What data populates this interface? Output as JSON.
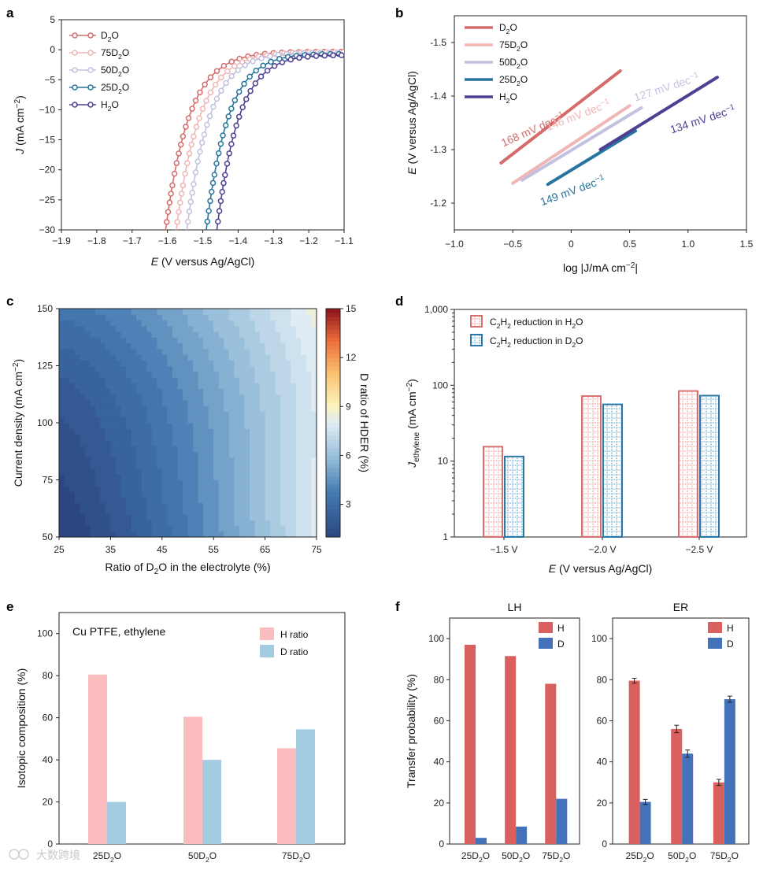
{
  "panels": {
    "a": "a",
    "b": "b",
    "c": "c",
    "d": "d",
    "e": "e",
    "f": "f"
  },
  "watermark": "大数跨境",
  "colors": {
    "D2O": "#d56c6c",
    "75D2O": "#f0b6b6",
    "50D2O": "#c2c2e0",
    "25D2O": "#26759e",
    "H2O": "#503f93",
    "H_bar": "#d9605e",
    "D_bar": "#4472b8",
    "e_H": "#fbbcc0",
    "e_D": "#a3cce0",
    "d_H2O": "#d97070",
    "d_D2O": "#2a78a6"
  },
  "chart_data": [
    {
      "panel": "a",
      "type": "line",
      "xlabel_var": "E",
      "xlabel_rest": "(V versus Ag/AgCl)",
      "ylabel_var": "J",
      "ylabel_rest": "(mA cm",
      "xlim": [
        -1.9,
        -1.1
      ],
      "ylim": [
        -30,
        5
      ],
      "xticks": [
        "−1.9",
        "−1.8",
        "−1.7",
        "−1.6",
        "−1.5",
        "−1.4",
        "−1.3",
        "−1.2",
        "−1.1"
      ],
      "xtick_values": [
        -1.9,
        -1.8,
        -1.7,
        -1.6,
        -1.5,
        -1.4,
        -1.3,
        -1.2,
        -1.1
      ],
      "yticks": [
        "5",
        "0",
        "−5",
        "−10",
        "−15",
        "−20",
        "−25",
        "−30"
      ],
      "ytick_values": [
        5,
        0,
        -5,
        -10,
        -15,
        -20,
        -25,
        -30
      ],
      "series": [
        {
          "name": "D",
          "sub": "2",
          "tail": "O",
          "key": "D2O",
          "onset": -1.605,
          "slope": 15,
          "plateau": -0.4
        },
        {
          "name": "75D",
          "sub": "2",
          "tail": "O",
          "key": "75D2O",
          "onset": -1.575,
          "slope": 15,
          "plateau": -0.5
        },
        {
          "name": "50D",
          "sub": "2",
          "tail": "O",
          "key": "50D2O",
          "onset": -1.545,
          "slope": 15.5,
          "plateau": -0.6
        },
        {
          "name": "25D",
          "sub": "2",
          "tail": "O",
          "key": "25D2O",
          "onset": -1.49,
          "slope": 16,
          "plateau": -0.9
        },
        {
          "name": "H",
          "sub": "2",
          "tail": "O",
          "key": "H2O",
          "onset": -1.46,
          "slope": 16,
          "plateau": -1.2
        }
      ]
    },
    {
      "panel": "b",
      "type": "line",
      "xlabel": "log |J/mA cm",
      "ylabel_var": "E",
      "ylabel_rest": "(V versus Ag/AgCl)",
      "xlim": [
        -1.0,
        1.5
      ],
      "ylim": [
        -1.15,
        -1.55
      ],
      "xticks": [
        "−1.0",
        "−0.5",
        "0",
        "0.5",
        "1.0",
        "1.5"
      ],
      "xtick_values": [
        -1.0,
        -0.5,
        0,
        0.5,
        1.0,
        1.5
      ],
      "yticks": [
        "-1.5",
        "-1.4",
        "-1.3",
        "-1.2"
      ],
      "ytick_values": [
        -1.5,
        -1.4,
        -1.3,
        -1.2
      ],
      "series": [
        {
          "name": "D",
          "sub": "2",
          "tail": "O",
          "key": "D2O",
          "x": [
            -0.6,
            0.42
          ],
          "y": [
            -1.275,
            -1.447
          ],
          "label": "168 mV dec",
          "label_x": -0.58,
          "label_y": -1.305,
          "angle": -24
        },
        {
          "name": "75D",
          "sub": "2",
          "tail": "O",
          "key": "75D2O",
          "x": [
            -0.5,
            0.5
          ],
          "y": [
            -1.237,
            -1.382
          ],
          "label": "146 mV dec",
          "label_x": -0.2,
          "label_y": -1.335,
          "angle": -21
        },
        {
          "name": "50D",
          "sub": "2",
          "tail": "O",
          "key": "50D2O",
          "x": [
            -0.42,
            0.6
          ],
          "y": [
            -1.243,
            -1.378
          ],
          "label": "127 mV dec",
          "label_x": 0.55,
          "label_y": -1.39,
          "angle": -18
        },
        {
          "name": "25D",
          "sub": "2",
          "tail": "O",
          "key": "25D2O",
          "x": [
            -0.2,
            0.55
          ],
          "y": [
            -1.235,
            -1.335
          ],
          "label": "149 mV dec",
          "label_x": -0.25,
          "label_y": -1.195,
          "angle": -20
        },
        {
          "name": "H",
          "sub": "2",
          "tail": "O",
          "key": "H2O",
          "x": [
            0.25,
            1.25
          ],
          "y": [
            -1.3,
            -1.435
          ],
          "label": "134 mV dec",
          "label_x": 0.86,
          "label_y": -1.33,
          "angle": -18
        }
      ]
    },
    {
      "panel": "c",
      "type": "heatmap",
      "xlabel": "Ratio of D",
      "xlabel_tail": "O in the electrolyte (%)",
      "ylabel": "Current density (mA cm",
      "cbar_label": "D ratio of HDER (%)",
      "xlim": [
        25,
        75
      ],
      "ylim": [
        50,
        150
      ],
      "xticks": [
        "25",
        "35",
        "45",
        "55",
        "65",
        "75"
      ],
      "xtick_values": [
        25,
        35,
        45,
        55,
        65,
        75
      ],
      "yticks": [
        "50",
        "75",
        "100",
        "125",
        "150"
      ],
      "ytick_values": [
        50,
        75,
        100,
        125,
        150
      ],
      "cbar_ticks": [
        "3",
        "6",
        "9",
        "12",
        "15"
      ],
      "cbar_values": [
        3,
        6,
        9,
        12,
        15
      ],
      "zlim": [
        1,
        15
      ]
    },
    {
      "panel": "d",
      "type": "bar",
      "xlabel_var": "E",
      "xlabel_rest": "(V versus Ag/AgCl)",
      "ylabel_var": "J",
      "ylabel_sub": "ethylene",
      "ylabel_rest": "(mA cm",
      "categories": [
        "−1.5 V",
        "−2.0 V",
        "−2.5 V"
      ],
      "yscale": "log",
      "ylim": [
        1,
        1000
      ],
      "yticks": [
        "1",
        "10",
        "100",
        "1,000"
      ],
      "ytick_values": [
        1,
        10,
        100,
        1000
      ],
      "series": [
        {
          "name": "C",
          "sub1": "2",
          "mid": "H",
          "sub2": "2",
          "tail": " reduction in H",
          "sub3": "2",
          "end": "O",
          "values": [
            15.5,
            72,
            84
          ]
        },
        {
          "name": "C",
          "sub1": "2",
          "mid": "H",
          "sub2": "2",
          "tail": " reduction in D",
          "sub3": "2",
          "end": "O",
          "values": [
            11.5,
            56,
            73
          ]
        }
      ]
    },
    {
      "panel": "e",
      "type": "bar",
      "title": "Cu PTFE, ethylene",
      "ylabel": "Isotopic composition (%)",
      "categories": [
        {
          "pre": "25D",
          "sub": "2",
          "tail": "O"
        },
        {
          "pre": "50D",
          "sub": "2",
          "tail": "O"
        },
        {
          "pre": "75D",
          "sub": "2",
          "tail": "O"
        }
      ],
      "ylim": [
        0,
        110
      ],
      "yticks": [
        "0",
        "20",
        "40",
        "60",
        "80",
        "100"
      ],
      "ytick_values": [
        0,
        20,
        40,
        60,
        80,
        100
      ],
      "series": [
        {
          "name": "H ratio",
          "values": [
            80.5,
            60.5,
            45.5
          ]
        },
        {
          "name": "D ratio",
          "values": [
            20,
            40,
            54.5
          ]
        }
      ]
    },
    {
      "panel": "f-LH",
      "type": "bar",
      "title": "LH",
      "ylabel": "Transfer probability (%)",
      "categories": [
        {
          "pre": "25D",
          "sub": "2",
          "tail": "O"
        },
        {
          "pre": "50D",
          "sub": "2",
          "tail": "O"
        },
        {
          "pre": "75D",
          "sub": "2",
          "tail": "O"
        }
      ],
      "ylim": [
        0,
        110
      ],
      "yticks": [
        "0",
        "20",
        "40",
        "60",
        "80",
        "100"
      ],
      "ytick_values": [
        0,
        20,
        40,
        60,
        80,
        100
      ],
      "series": [
        {
          "name": "H",
          "values": [
            97,
            91.5,
            78
          ]
        },
        {
          "name": "D",
          "values": [
            3,
            8.5,
            22
          ]
        }
      ]
    },
    {
      "panel": "f-ER",
      "type": "bar",
      "title": "ER",
      "categories": [
        {
          "pre": "25D",
          "sub": "2",
          "tail": "O"
        },
        {
          "pre": "50D",
          "sub": "2",
          "tail": "O"
        },
        {
          "pre": "75D",
          "sub": "2",
          "tail": "O"
        }
      ],
      "ylim": [
        0,
        110
      ],
      "yticks": [
        "0",
        "20",
        "40",
        "60",
        "80",
        "100"
      ],
      "ytick_values": [
        0,
        20,
        40,
        60,
        80,
        100
      ],
      "series": [
        {
          "name": "H",
          "values": [
            79.5,
            56,
            30
          ],
          "errors": [
            1.2,
            1.8,
            1.5
          ]
        },
        {
          "name": "D",
          "values": [
            20.5,
            44,
            70.5
          ],
          "errors": [
            1.2,
            1.8,
            1.5
          ]
        }
      ]
    }
  ]
}
